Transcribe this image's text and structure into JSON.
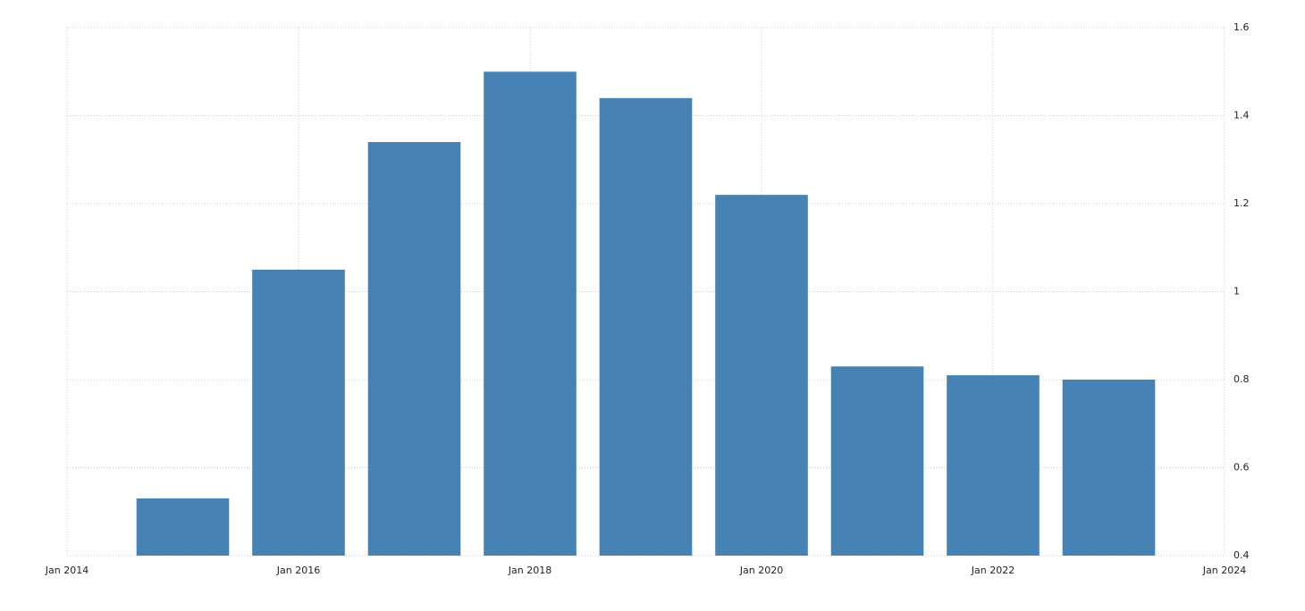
{
  "chart_data": {
    "type": "bar",
    "x": [
      "2015-01",
      "2016-01",
      "2017-01",
      "2018-01",
      "2019-01",
      "2020-01",
      "2021-01",
      "2022-01",
      "2023-01"
    ],
    "values": [
      0.53,
      1.05,
      1.34,
      1.5,
      1.44,
      1.22,
      0.83,
      0.81,
      0.8
    ],
    "color": "#4682b4",
    "xlim": [
      "2014-01",
      "2024-01"
    ],
    "xticks": [
      {
        "value": "2014-01",
        "label": "Jan 2014"
      },
      {
        "value": "2016-01",
        "label": "Jan 2016"
      },
      {
        "value": "2018-01",
        "label": "Jan 2018"
      },
      {
        "value": "2020-01",
        "label": "Jan 2020"
      },
      {
        "value": "2022-01",
        "label": "Jan 2022"
      },
      {
        "value": "2024-01",
        "label": "Jan 2024"
      }
    ],
    "ylim": [
      0.4,
      1.6
    ],
    "yticks": [
      0.4,
      0.6,
      0.8,
      1,
      1.2,
      1.4,
      1.6
    ],
    "grid": true
  }
}
